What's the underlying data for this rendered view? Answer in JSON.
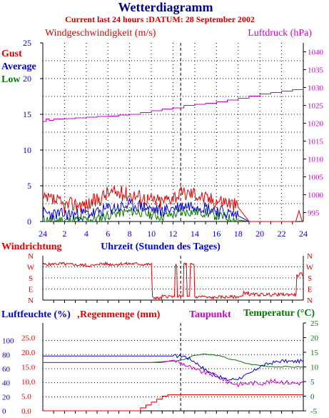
{
  "header": {
    "title": "Wetterdiagramm",
    "subtitle": "Current last 24 hours :DATUM: 28 September 2002"
  },
  "colors": {
    "title": "#000080",
    "subtitle": "#cc0000",
    "red": "#dd0000",
    "blue": "#0000cc",
    "green": "#007700",
    "magenta": "#cc00cc",
    "axis": "#000000",
    "grid": "#000000"
  },
  "chart_data": [
    {
      "type": "line",
      "panel": "wind",
      "left_axis_label": "Windgeschwindigkeit (m/s)",
      "right_axis_label": "Luftdruck (hPa)",
      "xlabel": "Uhrzeit (Stunden des Tages)",
      "x_ticks": [
        "24",
        "2",
        "4",
        "6",
        "8",
        "10",
        "12",
        "14",
        "16",
        "18",
        "20",
        "22",
        "24"
      ],
      "ylim_left": [
        0,
        25
      ],
      "left_ticks": [
        "25",
        "20",
        "15",
        "10",
        "5",
        "0"
      ],
      "ylim_right": [
        992.5,
        1042.5
      ],
      "right_ticks": [
        "1040",
        "1035",
        "1030",
        "1025",
        "1020",
        "1015",
        "1010",
        "1005",
        "1000",
        "995"
      ],
      "legend": [
        "Gust",
        "Average",
        "Low"
      ],
      "legend_placement": "top-left",
      "grid": true,
      "series": [
        {
          "name": "Gust",
          "axis": "left",
          "x": [
            0,
            1,
            2,
            3,
            4,
            5,
            6,
            7,
            8,
            9,
            10,
            11,
            12,
            13,
            14,
            15,
            16,
            17,
            18,
            19,
            23.3,
            23.6,
            23.9
          ],
          "y": [
            3,
            3,
            2.2,
            2.5,
            2.3,
            3,
            4,
            4,
            3.8,
            3.5,
            3,
            2.8,
            3.6,
            3.9,
            4,
            3.2,
            3,
            2.8,
            2,
            0,
            0,
            1.5,
            0
          ]
        },
        {
          "name": "Average",
          "axis": "left",
          "x": [
            0,
            1,
            2,
            3,
            4,
            5,
            6,
            7,
            8,
            9,
            10,
            11,
            12,
            13,
            14,
            15,
            16,
            17,
            18,
            19
          ],
          "y": [
            1.2,
            1,
            1,
            1,
            1.1,
            1.2,
            1.8,
            2,
            2.3,
            2.2,
            1.7,
            1.5,
            1.9,
            2.2,
            2.3,
            2,
            1.6,
            1.2,
            0.8,
            0
          ]
        },
        {
          "name": "Low",
          "axis": "left",
          "x": [
            0,
            1,
            2,
            3,
            4,
            5,
            6,
            7,
            8,
            9,
            10,
            11,
            12,
            13,
            14,
            15,
            16,
            17,
            18,
            19
          ],
          "y": [
            0.3,
            0.2,
            0.2,
            0.2,
            0.2,
            0.4,
            0.9,
            1.2,
            1.4,
            1.3,
            0.9,
            0.7,
            1,
            1.3,
            1.4,
            1.2,
            0.8,
            0.5,
            0.2,
            0
          ]
        },
        {
          "name": "Luftdruck",
          "axis": "right",
          "x": [
            0,
            0.3,
            0.6,
            1,
            2,
            3,
            4,
            5,
            6,
            7,
            8,
            9,
            10,
            11,
            12,
            13,
            14,
            15,
            16,
            17,
            18,
            19,
            20,
            21,
            22,
            23,
            24
          ],
          "y": [
            1020.5,
            1021.2,
            1020.8,
            1021.2,
            1021.3,
            1021.5,
            1021.7,
            1021.9,
            1022,
            1022.3,
            1022.5,
            1023,
            1023.5,
            1024,
            1024.3,
            1025,
            1025.3,
            1025.6,
            1026,
            1026.5,
            1027,
            1027.6,
            1028.2,
            1028.6,
            1029,
            1029.4,
            1029.6
          ]
        }
      ]
    },
    {
      "type": "line",
      "panel": "direction",
      "left_axis_label": "Windrichtung",
      "y_ticks_left": [
        "N",
        "W",
        "S",
        "E",
        "N"
      ],
      "y_ticks_right": [
        "N",
        "W",
        "S",
        "E",
        "N"
      ],
      "grid": true,
      "series": [
        {
          "name": "Windrichtung",
          "x": [
            0,
            1,
            2,
            3,
            4,
            5,
            6,
            7,
            8,
            9,
            10,
            10.1,
            10.5,
            11,
            12,
            12.2,
            12.4,
            13,
            13.3,
            13.6,
            14,
            14.5,
            15,
            16,
            17,
            18,
            18.5,
            19,
            20,
            21,
            22,
            23,
            23.4,
            23.7,
            24
          ],
          "y_deg": [
            290,
            295,
            290,
            285,
            280,
            295,
            290,
            295,
            295,
            290,
            292,
            20,
            15,
            30,
            20,
            280,
            30,
            295,
            25,
            290,
            25,
            30,
            20,
            25,
            25,
            30,
            60,
            45,
            45,
            45,
            45,
            45,
            200,
            210,
            205
          ]
        }
      ]
    },
    {
      "type": "line",
      "panel": "humidity",
      "labels": {
        "humidity": "Luftfeuchte (%)",
        "rain": "Regenmenge (mm)",
        "dewpoint": "Taupunkt",
        "temperature": "Temperatur (°C)"
      },
      "ylim_left": [
        0,
        125
      ],
      "left_ticks_humidity": [
        "100",
        "80",
        "60",
        "40",
        "20",
        "0"
      ],
      "left_ticks_rain": [
        "25.0",
        "20.0",
        "15.0",
        "10.0",
        "5.0",
        "0.0"
      ],
      "ylim_right": [
        -5,
        25
      ],
      "right_ticks": [
        "25",
        "20",
        "15",
        "10",
        "5",
        "0",
        "-5"
      ],
      "grid": true,
      "series": [
        {
          "name": "Luftfeuchte",
          "axis": "left",
          "x": [
            0,
            2,
            4,
            6,
            8,
            10,
            11,
            12,
            13,
            14,
            15,
            16,
            17,
            18,
            19,
            20,
            21,
            22,
            23,
            24
          ],
          "y": [
            78,
            78,
            78,
            78,
            78,
            78,
            78,
            78,
            78,
            70,
            58,
            50,
            44,
            46,
            52,
            63,
            68,
            71,
            70,
            71
          ]
        },
        {
          "name": "Regenmenge",
          "axis": "left_rain",
          "x": [
            0,
            6,
            8.5,
            9,
            9.5,
            10,
            10.5,
            11,
            11.5,
            24
          ],
          "y": [
            0,
            0,
            0,
            1,
            2,
            3,
            4,
            5,
            5.5,
            5.5
          ]
        },
        {
          "name": "Taupunkt",
          "axis": "right",
          "x": [
            0,
            2,
            4,
            6,
            8,
            10,
            11,
            12,
            13,
            14,
            15,
            16,
            17,
            18,
            19,
            20,
            21,
            22,
            23,
            24
          ],
          "y": [
            11.5,
            11.5,
            11.5,
            11.5,
            11.5,
            11.5,
            11.5,
            12.3,
            11,
            9,
            8,
            7,
            5,
            4,
            4.5,
            4.5,
            5,
            5,
            4.5,
            4.5
          ]
        },
        {
          "name": "Temperatur",
          "axis": "right",
          "x": [
            0,
            2,
            4,
            6,
            8,
            10,
            11,
            12,
            13,
            14,
            15,
            16,
            17,
            18,
            19,
            20,
            21,
            22,
            23,
            24
          ],
          "y": [
            11.5,
            11.5,
            11.5,
            11.5,
            11.5,
            11.5,
            11.8,
            12,
            12.5,
            14,
            14.3,
            14,
            13,
            12,
            11,
            10.5,
            10.2,
            10,
            10,
            10
          ]
        }
      ]
    }
  ]
}
